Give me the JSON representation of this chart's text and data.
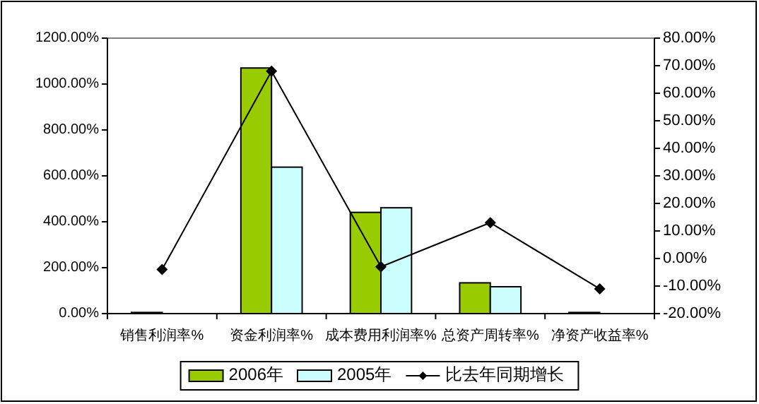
{
  "chart_data": {
    "type": "bar",
    "categories": [
      "销售利润率%",
      "资金利润率%",
      "成本费用利润率%",
      "总资产周转率%",
      "净资产收益率%"
    ],
    "series": [
      {
        "name": "2006年",
        "color": "#99cc00",
        "values": [
          5,
          1070,
          441,
          134,
          5
        ]
      },
      {
        "name": "2005年",
        "color": "#ccffff",
        "values": [
          null,
          638,
          461,
          117,
          null
        ]
      },
      {
        "name": "比去年同期增长",
        "type": "line",
        "axis": "y2",
        "color": "#000000",
        "marker": "diamond",
        "values": [
          -4,
          68,
          -3,
          13,
          -11
        ]
      }
    ],
    "ylim": [
      0,
      1200
    ],
    "yticks": [
      {
        "value": 0,
        "label": "0.00%"
      },
      {
        "value": 200,
        "label": "200.00%"
      },
      {
        "value": 400,
        "label": "400.00%"
      },
      {
        "value": 600,
        "label": "600.00%"
      },
      {
        "value": 800,
        "label": "800.00%"
      },
      {
        "value": 1000,
        "label": "1000.00%"
      },
      {
        "value": 1200,
        "label": "1200.00%"
      }
    ],
    "y2lim": [
      -20,
      80
    ],
    "y2ticks": [
      {
        "value": -20,
        "label": "-20.00%"
      },
      {
        "value": -10,
        "label": "-10.00%"
      },
      {
        "value": 0,
        "label": "0.00%"
      },
      {
        "value": 10,
        "label": "10.00%"
      },
      {
        "value": 20,
        "label": "20.00%"
      },
      {
        "value": 30,
        "label": "30.00%"
      },
      {
        "value": 40,
        "label": "40.00%"
      },
      {
        "value": 50,
        "label": "50.00%"
      },
      {
        "value": 60,
        "label": "60.00%"
      },
      {
        "value": 70,
        "label": "70.00%"
      },
      {
        "value": 80,
        "label": "80.00%"
      }
    ],
    "legend": "bottom",
    "grid": false
  }
}
